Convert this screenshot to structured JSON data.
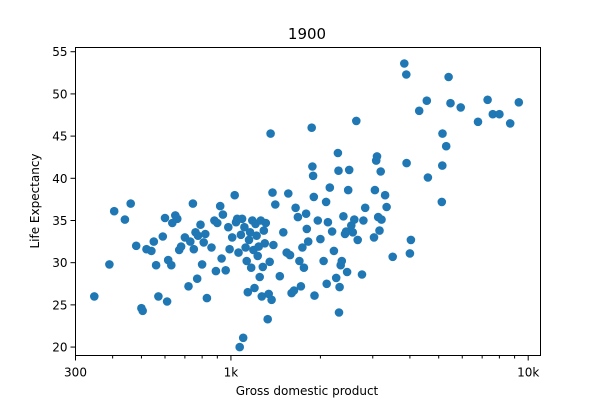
{
  "chart_data": {
    "type": "scatter",
    "title": "1900",
    "xlabel": "Gross domestic product",
    "ylabel": "Life Expectancy",
    "xscale": "log",
    "xlim": [
      300,
      11000
    ],
    "ylim": [
      19,
      55.5
    ],
    "xticks": [
      {
        "value": 300,
        "label": "300"
      },
      {
        "value": 1000,
        "label": "1k"
      },
      {
        "value": 10000,
        "label": "10k"
      }
    ],
    "xminor": [
      400,
      500,
      600,
      700,
      800,
      900,
      2000,
      3000,
      4000,
      5000,
      6000,
      7000,
      8000,
      9000
    ],
    "yticks": [
      20,
      25,
      30,
      35,
      40,
      45,
      50,
      55
    ],
    "grid": false,
    "color": "#1f77b4",
    "points": [
      [
        347,
        26.0
      ],
      [
        390,
        29.8
      ],
      [
        405,
        36.1
      ],
      [
        440,
        35.1
      ],
      [
        460,
        37.0
      ],
      [
        480,
        32.0
      ],
      [
        500,
        24.6
      ],
      [
        505,
        24.3
      ],
      [
        520,
        31.6
      ],
      [
        540,
        31.4
      ],
      [
        550,
        32.5
      ],
      [
        560,
        29.7
      ],
      [
        570,
        26.0
      ],
      [
        590,
        33.1
      ],
      [
        600,
        35.3
      ],
      [
        610,
        25.4
      ],
      [
        615,
        30.3
      ],
      [
        630,
        29.7
      ],
      [
        635,
        34.7
      ],
      [
        650,
        35.6
      ],
      [
        660,
        35.2
      ],
      [
        670,
        31.5
      ],
      [
        680,
        31.9
      ],
      [
        700,
        33.0
      ],
      [
        720,
        27.2
      ],
      [
        730,
        32.5
      ],
      [
        745,
        37.0
      ],
      [
        750,
        31.6
      ],
      [
        760,
        33.6
      ],
      [
        770,
        28.1
      ],
      [
        775,
        33.2
      ],
      [
        790,
        34.5
      ],
      [
        800,
        29.8
      ],
      [
        810,
        32.4
      ],
      [
        820,
        33.4
      ],
      [
        830,
        25.8
      ],
      [
        860,
        31.8
      ],
      [
        880,
        35.0
      ],
      [
        890,
        29.0
      ],
      [
        900,
        34.7
      ],
      [
        920,
        36.7
      ],
      [
        930,
        30.5
      ],
      [
        940,
        35.7
      ],
      [
        960,
        29.1
      ],
      [
        980,
        34.2
      ],
      [
        990,
        31.6
      ],
      [
        1010,
        33.0
      ],
      [
        1030,
        38.0
      ],
      [
        1040,
        34.8
      ],
      [
        1050,
        35.2
      ],
      [
        1060,
        31.2
      ],
      [
        1070,
        20.0
      ],
      [
        1080,
        33.3
      ],
      [
        1090,
        35.2
      ],
      [
        1100,
        21.1
      ],
      [
        1110,
        34.2
      ],
      [
        1120,
        31.8
      ],
      [
        1130,
        30.2
      ],
      [
        1140,
        26.5
      ],
      [
        1150,
        32.7
      ],
      [
        1160,
        33.6
      ],
      [
        1170,
        29.4
      ],
      [
        1180,
        35.0
      ],
      [
        1190,
        31.5
      ],
      [
        1200,
        27.0
      ],
      [
        1210,
        34.6
      ],
      [
        1220,
        33.2
      ],
      [
        1230,
        30.8
      ],
      [
        1240,
        31.9
      ],
      [
        1250,
        28.3
      ],
      [
        1260,
        35.0
      ],
      [
        1270,
        26.0
      ],
      [
        1280,
        29.5
      ],
      [
        1290,
        33.8
      ],
      [
        1300,
        32.3
      ],
      [
        1310,
        34.7
      ],
      [
        1330,
        23.3
      ],
      [
        1340,
        26.3
      ],
      [
        1350,
        30.1
      ],
      [
        1360,
        45.3
      ],
      [
        1370,
        25.6
      ],
      [
        1380,
        38.3
      ],
      [
        1390,
        32.1
      ],
      [
        1410,
        36.9
      ],
      [
        1460,
        28.4
      ],
      [
        1500,
        33.6
      ],
      [
        1540,
        31.2
      ],
      [
        1560,
        38.2
      ],
      [
        1580,
        30.9
      ],
      [
        1600,
        26.4
      ],
      [
        1630,
        26.7
      ],
      [
        1650,
        36.5
      ],
      [
        1680,
        35.4
      ],
      [
        1700,
        30.2
      ],
      [
        1720,
        27.2
      ],
      [
        1740,
        31.8
      ],
      [
        1760,
        29.4
      ],
      [
        1790,
        35.8
      ],
      [
        1800,
        34.0
      ],
      [
        1820,
        32.5
      ],
      [
        1870,
        46.0
      ],
      [
        1880,
        41.4
      ],
      [
        1890,
        40.3
      ],
      [
        1900,
        37.8
      ],
      [
        1910,
        26.1
      ],
      [
        1960,
        35.0
      ],
      [
        2000,
        32.8
      ],
      [
        2050,
        30.2
      ],
      [
        2090,
        37.2
      ],
      [
        2100,
        27.5
      ],
      [
        2120,
        34.8
      ],
      [
        2150,
        38.9
      ],
      [
        2190,
        33.7
      ],
      [
        2220,
        31.4
      ],
      [
        2260,
        28.2
      ],
      [
        2290,
        43.0
      ],
      [
        2300,
        40.9
      ],
      [
        2310,
        24.1
      ],
      [
        2320,
        27.1
      ],
      [
        2340,
        29.7
      ],
      [
        2360,
        30.2
      ],
      [
        2390,
        35.5
      ],
      [
        2420,
        33.4
      ],
      [
        2440,
        33.7
      ],
      [
        2460,
        28.9
      ],
      [
        2480,
        38.6
      ],
      [
        2500,
        41.0
      ],
      [
        2540,
        34.4
      ],
      [
        2570,
        33.6
      ],
      [
        2600,
        35.1
      ],
      [
        2640,
        46.8
      ],
      [
        2670,
        32.7
      ],
      [
        2760,
        28.6
      ],
      [
        2790,
        35.0
      ],
      [
        2830,
        36.5
      ],
      [
        3030,
        33.0
      ],
      [
        3050,
        38.6
      ],
      [
        3080,
        42.1
      ],
      [
        3100,
        42.6
      ],
      [
        3130,
        35.4
      ],
      [
        3160,
        33.8
      ],
      [
        3190,
        40.8
      ],
      [
        3210,
        35.1
      ],
      [
        3300,
        38.0
      ],
      [
        3340,
        36.6
      ],
      [
        3500,
        30.7
      ],
      [
        3830,
        53.6
      ],
      [
        3890,
        52.3
      ],
      [
        3900,
        41.8
      ],
      [
        4000,
        31.1
      ],
      [
        4030,
        32.7
      ],
      [
        4300,
        48.0
      ],
      [
        4560,
        49.2
      ],
      [
        4600,
        40.1
      ],
      [
        5120,
        37.2
      ],
      [
        5140,
        41.5
      ],
      [
        5150,
        45.3
      ],
      [
        5300,
        43.8
      ],
      [
        5400,
        52.0
      ],
      [
        5480,
        48.9
      ],
      [
        5930,
        48.4
      ],
      [
        6780,
        46.7
      ],
      [
        7300,
        49.3
      ],
      [
        7600,
        47.6
      ],
      [
        8000,
        47.6
      ],
      [
        8700,
        46.5
      ],
      [
        9300,
        49.0
      ]
    ]
  }
}
